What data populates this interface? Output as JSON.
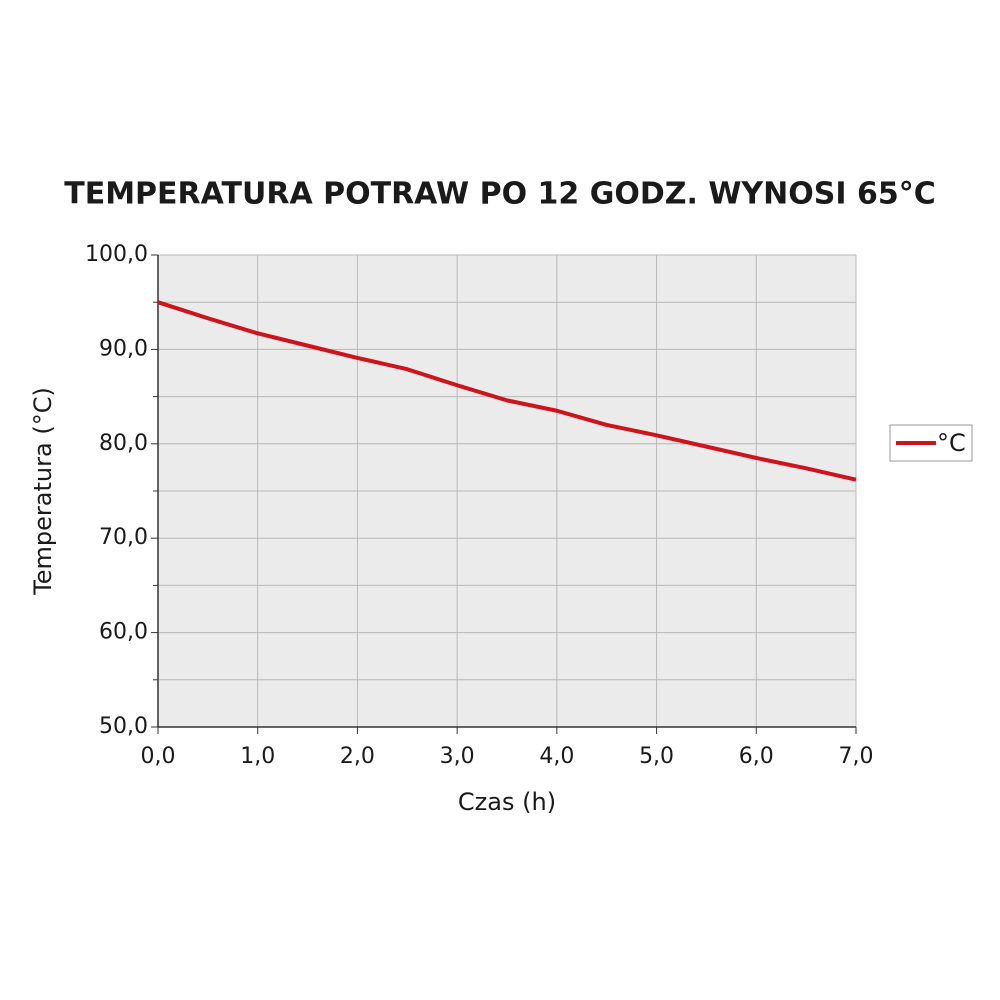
{
  "chart_data": {
    "type": "line",
    "title": "TEMPERATURA POTRAW PO 12 GODZ. WYNOSI 65°C",
    "x_label": "Czas (h)",
    "y_label": "Temperatura (°C)",
    "x": [
      0,
      0.5,
      1,
      1.5,
      2,
      2.5,
      3,
      3.5,
      4,
      4.5,
      5,
      5.5,
      6,
      6.5,
      7
    ],
    "series": [
      {
        "name": "°C",
        "color": "#d0121b",
        "values": [
          95.0,
          93.3,
          91.7,
          90.4,
          89.1,
          87.9,
          86.2,
          84.6,
          83.5,
          82.0,
          80.9,
          79.7,
          78.5,
          77.4,
          76.2
        ]
      }
    ],
    "xlim": [
      0,
      7
    ],
    "ylim": [
      50,
      100
    ],
    "xticks": [
      {
        "value": 0,
        "label": "0,0"
      },
      {
        "value": 1,
        "label": "1,0"
      },
      {
        "value": 2,
        "label": "2,0"
      },
      {
        "value": 3,
        "label": "3,0"
      },
      {
        "value": 4,
        "label": "4,0"
      },
      {
        "value": 5,
        "label": "5,0"
      },
      {
        "value": 6,
        "label": "6,0"
      },
      {
        "value": 7,
        "label": "7,0"
      }
    ],
    "yticks": [
      {
        "value": 50,
        "label": "50,0"
      },
      {
        "value": 60,
        "label": "60,0"
      },
      {
        "value": 70,
        "label": "70,0"
      },
      {
        "value": 80,
        "label": "80,0"
      },
      {
        "value": 90,
        "label": "90,0"
      },
      {
        "value": 100,
        "label": "100,0"
      }
    ],
    "y_minor_ticks": [
      55,
      65,
      75,
      85,
      95
    ],
    "grid": true,
    "legend": "right"
  }
}
